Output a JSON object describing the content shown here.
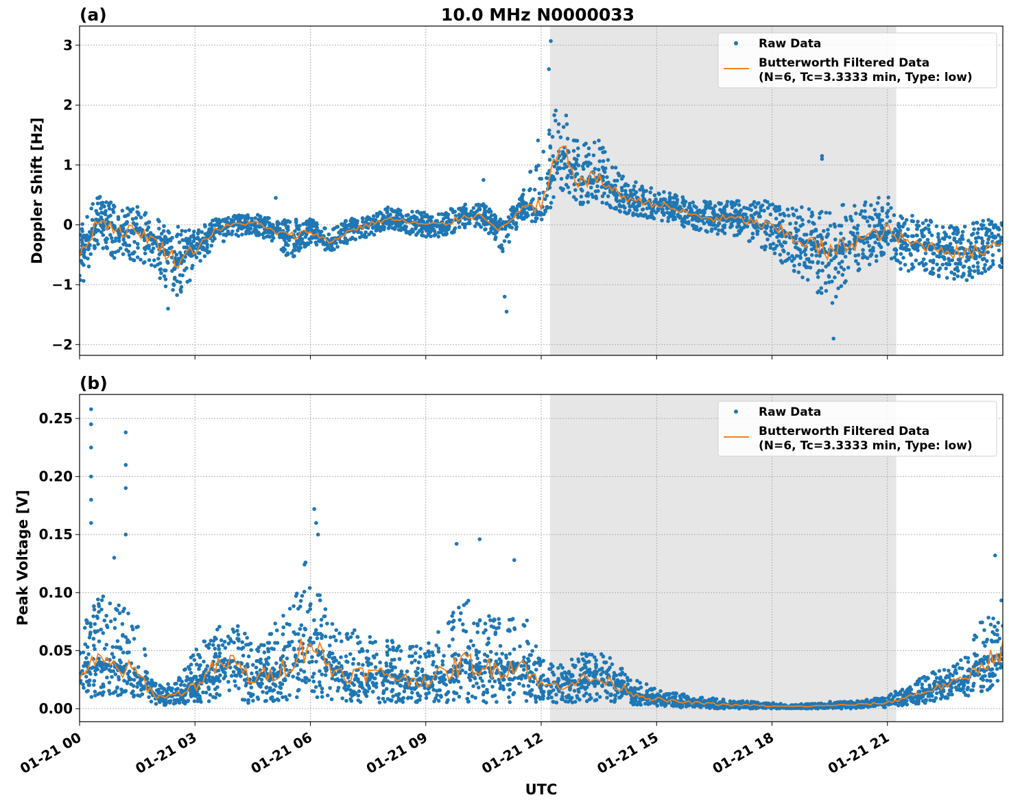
{
  "chart_data": [
    {
      "type": "scatter",
      "panel_label": "(a)",
      "title": "10.0 MHz N0000033",
      "xlabel": "",
      "ylabel": "Doppler Shift [Hz]",
      "xlim_hours": [
        0,
        24
      ],
      "ylim": [
        -2.18,
        3.32
      ],
      "yticks": [
        -2,
        -1,
        0,
        1,
        2,
        3
      ],
      "ytick_labels": [
        "−2",
        "−1",
        "0",
        "1",
        "2",
        "3"
      ],
      "grid": true,
      "shaded_span_hours": [
        12.23,
        21.23
      ],
      "legend": {
        "placement": "top-right",
        "entries": [
          "Raw Data",
          "Butterworth Filtered Data",
          "(N=6, Tc=3.3333 min, Type: low)"
        ]
      },
      "series": [
        {
          "name": "Raw Data",
          "kind": "scatter",
          "color": "#1f77b4"
        },
        {
          "name": "Butterworth Filtered Data (N=6, Tc=3.3333 min, Type: low)",
          "kind": "line",
          "color": "#ff7f0e"
        }
      ],
      "x_hours": [
        0,
        0.5,
        1,
        1.5,
        2,
        2.5,
        3,
        3.5,
        4,
        4.5,
        5,
        5.5,
        6,
        6.5,
        7,
        7.5,
        8,
        8.5,
        9,
        9.5,
        10,
        10.5,
        11,
        11.5,
        12,
        12.5,
        13,
        13.5,
        14,
        14.5,
        15,
        15.5,
        16,
        16.5,
        17,
        17.5,
        18,
        18.5,
        19,
        19.5,
        20,
        20.5,
        21,
        21.5,
        22,
        22.5,
        23,
        23.5,
        24
      ],
      "filtered": [
        -0.5,
        0.1,
        -0.1,
        -0.1,
        -0.3,
        -0.6,
        -0.4,
        -0.1,
        0.0,
        0.05,
        -0.1,
        -0.2,
        -0.1,
        -0.3,
        -0.1,
        0.0,
        0.1,
        0.05,
        0.0,
        0.0,
        0.15,
        0.15,
        -0.1,
        0.3,
        0.25,
        1.3,
        0.7,
        0.8,
        0.5,
        0.4,
        0.35,
        0.25,
        0.15,
        0.1,
        0.1,
        0.05,
        -0.05,
        -0.2,
        -0.3,
        -0.5,
        -0.3,
        -0.2,
        -0.1,
        -0.3,
        -0.35,
        -0.4,
        -0.5,
        -0.4,
        -0.25
      ],
      "raw_low": [
        -1.1,
        -0.4,
        -0.6,
        -0.6,
        -0.8,
        -1.3,
        -0.8,
        -0.35,
        -0.2,
        -0.15,
        -0.3,
        -0.6,
        -0.3,
        -0.45,
        -0.3,
        -0.2,
        -0.1,
        -0.15,
        -0.2,
        -0.2,
        -0.05,
        -0.05,
        -0.5,
        0.1,
        0.0,
        0.6,
        0.3,
        0.4,
        0.2,
        0.15,
        0.05,
        0.0,
        -0.1,
        -0.15,
        -0.2,
        -0.3,
        -0.5,
        -0.8,
        -1.0,
        -1.4,
        -0.9,
        -0.7,
        -0.6,
        -0.8,
        -0.8,
        -0.9,
        -1.0,
        -0.8,
        -0.7
      ],
      "raw_high": [
        0.1,
        0.5,
        0.3,
        0.3,
        0.1,
        0.0,
        -0.1,
        0.1,
        0.15,
        0.2,
        0.1,
        0.1,
        0.1,
        -0.1,
        0.1,
        0.15,
        0.3,
        0.25,
        0.2,
        0.25,
        0.35,
        0.35,
        0.1,
        0.5,
        1.6,
        2.3,
        1.3,
        1.5,
        0.9,
        0.7,
        0.6,
        0.5,
        0.4,
        0.4,
        0.4,
        0.4,
        0.4,
        0.3,
        0.3,
        0.2,
        0.4,
        0.4,
        0.5,
        0.2,
        0.1,
        0.0,
        0.0,
        0.1,
        0.1
      ],
      "raw_outliers": [
        [
          12.25,
          3.07
        ],
        [
          12.2,
          2.6
        ],
        [
          19.3,
          1.15
        ],
        [
          19.3,
          1.1
        ],
        [
          19.6,
          -1.9
        ],
        [
          11.1,
          -1.45
        ],
        [
          11.05,
          -1.2
        ],
        [
          2.3,
          -1.4
        ],
        [
          10.5,
          0.75
        ],
        [
          5.1,
          0.45
        ]
      ]
    },
    {
      "type": "scatter",
      "panel_label": "(b)",
      "title": "",
      "xlabel": "UTC",
      "ylabel": "Peak Voltage [V]",
      "xlim_hours": [
        0,
        24
      ],
      "ylim": [
        -0.0112,
        0.2707
      ],
      "yticks": [
        0,
        0.05,
        0.1,
        0.15,
        0.2,
        0.25
      ],
      "ytick_labels": [
        "0.00",
        "0.05",
        "0.10",
        "0.15",
        "0.20",
        "0.25"
      ],
      "xticks_hours": [
        0,
        3,
        6,
        9,
        12,
        15,
        18,
        21
      ],
      "xtick_labels": [
        "01-21 00",
        "01-21 03",
        "01-21 06",
        "01-21 09",
        "01-21 12",
        "01-21 15",
        "01-21 18",
        "01-21 21"
      ],
      "grid": true,
      "shaded_span_hours": [
        12.23,
        21.23
      ],
      "legend": {
        "placement": "top-right",
        "entries": [
          "Raw Data",
          "Butterworth Filtered Data",
          "(N=6, Tc=3.3333 min, Type: low)"
        ]
      },
      "series": [
        {
          "name": "Raw Data",
          "kind": "scatter",
          "color": "#1f77b4"
        },
        {
          "name": "Butterworth Filtered Data (N=6, Tc=3.3333 min, Type: low)",
          "kind": "line",
          "color": "#ff7f0e"
        }
      ],
      "x_hours": [
        0,
        0.5,
        1,
        1.5,
        2,
        2.5,
        3,
        3.5,
        4,
        4.5,
        5,
        5.5,
        6,
        6.5,
        7,
        7.5,
        8,
        8.5,
        9,
        9.5,
        10,
        10.5,
        11,
        11.5,
        12,
        12.5,
        13,
        13.5,
        14,
        14.5,
        15,
        15.5,
        16,
        16.5,
        17,
        17.5,
        18,
        18.5,
        19,
        19.5,
        20,
        20.5,
        21,
        21.5,
        22,
        22.5,
        23,
        23.5,
        24
      ],
      "filtered": [
        0.03,
        0.04,
        0.035,
        0.03,
        0.01,
        0.012,
        0.02,
        0.035,
        0.04,
        0.025,
        0.03,
        0.04,
        0.06,
        0.035,
        0.03,
        0.03,
        0.03,
        0.025,
        0.025,
        0.03,
        0.04,
        0.035,
        0.035,
        0.04,
        0.02,
        0.02,
        0.025,
        0.025,
        0.02,
        0.012,
        0.008,
        0.006,
        0.005,
        0.004,
        0.003,
        0.003,
        0.002,
        0.002,
        0.002,
        0.003,
        0.003,
        0.004,
        0.005,
        0.01,
        0.015,
        0.02,
        0.025,
        0.04,
        0.05
      ],
      "raw_low": [
        0.01,
        0.01,
        0.01,
        0.01,
        0.003,
        0.003,
        0.005,
        0.005,
        0.005,
        0.005,
        0.005,
        0.008,
        0.01,
        0.008,
        0.005,
        0.005,
        0.005,
        0.005,
        0.005,
        0.005,
        0.005,
        0.005,
        0.005,
        0.005,
        0.005,
        0.005,
        0.005,
        0.005,
        0.004,
        0.003,
        0.002,
        0.001,
        0.001,
        0.0,
        0.0,
        0.0,
        0.0,
        0.0,
        0.0,
        0.0,
        0.0,
        0.001,
        0.001,
        0.003,
        0.005,
        0.008,
        0.01,
        0.015,
        0.02
      ],
      "raw_high": [
        0.07,
        0.1,
        0.09,
        0.08,
        0.02,
        0.022,
        0.05,
        0.07,
        0.08,
        0.06,
        0.07,
        0.09,
        0.14,
        0.08,
        0.07,
        0.065,
        0.06,
        0.055,
        0.06,
        0.07,
        0.1,
        0.08,
        0.08,
        0.09,
        0.045,
        0.04,
        0.05,
        0.05,
        0.04,
        0.025,
        0.018,
        0.014,
        0.011,
        0.009,
        0.007,
        0.006,
        0.005,
        0.004,
        0.004,
        0.006,
        0.006,
        0.008,
        0.012,
        0.02,
        0.03,
        0.035,
        0.045,
        0.08,
        0.1
      ],
      "raw_outliers": [
        [
          0.3,
          0.258
        ],
        [
          0.3,
          0.245
        ],
        [
          0.3,
          0.225
        ],
        [
          0.3,
          0.2
        ],
        [
          0.3,
          0.18
        ],
        [
          0.3,
          0.16
        ],
        [
          1.2,
          0.238
        ],
        [
          1.2,
          0.21
        ],
        [
          1.2,
          0.19
        ],
        [
          1.2,
          0.15
        ],
        [
          6.1,
          0.172
        ],
        [
          6.15,
          0.16
        ],
        [
          6.2,
          0.15
        ],
        [
          10.4,
          0.146
        ],
        [
          9.8,
          0.142
        ],
        [
          11.3,
          0.128
        ],
        [
          23.8,
          0.132
        ],
        [
          0.9,
          0.13
        ]
      ]
    }
  ]
}
